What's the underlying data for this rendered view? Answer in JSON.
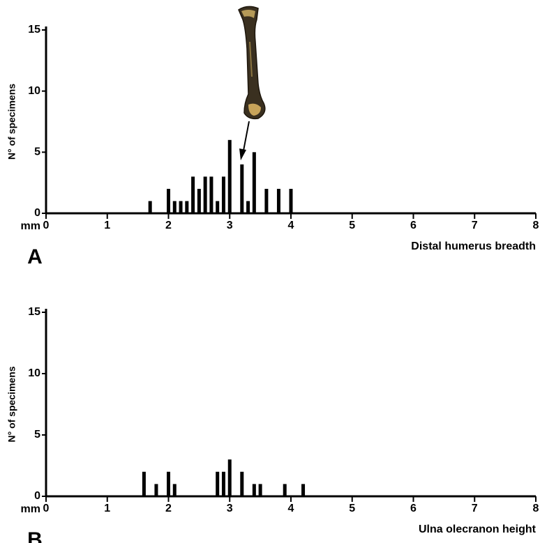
{
  "chart_data": [
    {
      "type": "bar",
      "panel": "A",
      "xlabel": "Distal humerus breadth",
      "ylabel": "N° of specimens",
      "x_unit": "mm",
      "x": [
        1.7,
        2.0,
        2.1,
        2.2,
        2.3,
        2.4,
        2.5,
        2.6,
        2.7,
        2.8,
        2.9,
        3.0,
        3.2,
        3.3,
        3.4,
        3.6,
        3.8,
        4.0
      ],
      "values": [
        1,
        2,
        1,
        1,
        1,
        3,
        2,
        3,
        3,
        1,
        3,
        6,
        4,
        1,
        5,
        2,
        2,
        2
      ],
      "color": "#000000",
      "xlim": [
        0,
        8
      ],
      "xticks": [
        0,
        1,
        2,
        3,
        4,
        5,
        6,
        7,
        8
      ],
      "ylim": [
        0,
        15
      ],
      "yticks": [
        0,
        5,
        10,
        15
      ]
    },
    {
      "type": "bar",
      "panel": "B",
      "xlabel": "Ulna olecranon height",
      "ylabel": "N° of specimens",
      "x_unit": "mm",
      "x": [
        1.6,
        1.8,
        2.0,
        2.1,
        2.8,
        2.9,
        3.0,
        3.2,
        3.4,
        3.5,
        3.9,
        4.2
      ],
      "values": [
        2,
        1,
        2,
        1,
        2,
        2,
        3,
        2,
        1,
        1,
        1,
        1
      ],
      "color": "#000000",
      "xlim": [
        0,
        8
      ],
      "xticks": [
        0,
        1,
        2,
        3,
        4,
        5,
        6,
        7,
        8
      ],
      "ylim": [
        0,
        15
      ],
      "yticks": [
        0,
        5,
        10,
        15
      ]
    }
  ]
}
